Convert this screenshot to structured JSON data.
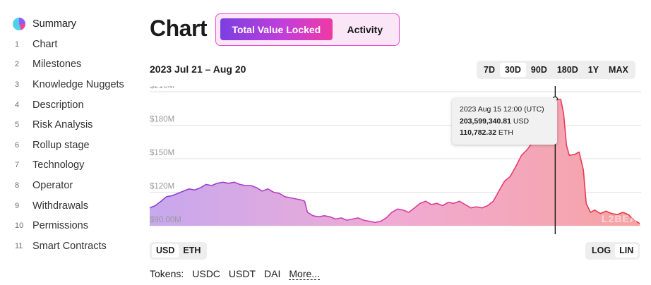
{
  "sidebar": {
    "items": [
      {
        "num": "",
        "label": "Summary"
      },
      {
        "num": "1",
        "label": "Chart"
      },
      {
        "num": "2",
        "label": "Milestones"
      },
      {
        "num": "3",
        "label": "Knowledge Nuggets"
      },
      {
        "num": "4",
        "label": "Description"
      },
      {
        "num": "5",
        "label": "Risk Analysis"
      },
      {
        "num": "6",
        "label": "Rollup stage"
      },
      {
        "num": "7",
        "label": "Technology"
      },
      {
        "num": "8",
        "label": "Operator"
      },
      {
        "num": "9",
        "label": "Withdrawals"
      },
      {
        "num": "10",
        "label": "Permissions"
      },
      {
        "num": "11",
        "label": "Smart Contracts"
      }
    ]
  },
  "header": {
    "title": "Chart",
    "tabs": [
      {
        "label": "Total Value Locked"
      },
      {
        "label": "Activity"
      }
    ],
    "date_range": "2023 Jul 21 – Aug 20"
  },
  "range_buttons": [
    "7D",
    "30D",
    "90D",
    "180D",
    "1Y",
    "MAX"
  ],
  "range_selected": "30D",
  "tooltip": {
    "date": "2023 Aug 15 12:00 (UTC)",
    "usd_value": "203,599,340.81",
    "usd_unit": "USD",
    "eth_value": "110,782.32",
    "eth_unit": "ETH"
  },
  "watermark": "L2BEAT",
  "currency_buttons": [
    "USD",
    "ETH"
  ],
  "currency_selected": "USD",
  "scale_buttons": [
    "LOG",
    "LIN"
  ],
  "scale_selected": "LIN",
  "tokens": {
    "label": "Tokens:",
    "items": [
      "USDC",
      "USDT",
      "DAI"
    ],
    "more": "More..."
  },
  "colors": {
    "accent_purple": "#7b3fe0",
    "accent_pink": "#ef3aa3",
    "line_red": "#e23b3b",
    "line_purple": "#8a3fd6"
  },
  "chart_data": {
    "type": "area",
    "y_tick_labels": [
      "$210M",
      "$180M",
      "$150M",
      "$120M",
      "$90.00M"
    ],
    "ylim": [
      90,
      210
    ],
    "x_range": [
      "2023-07-21",
      "2023-08-20"
    ],
    "series": [
      {
        "unit": "$M",
        "values": [
          [
            0,
            106
          ],
          [
            0.4,
            108
          ],
          [
            0.8,
            112
          ],
          [
            1.2,
            116
          ],
          [
            1.6,
            117
          ],
          [
            2.0,
            119
          ],
          [
            2.4,
            121
          ],
          [
            2.8,
            123
          ],
          [
            3.2,
            122
          ],
          [
            3.6,
            124
          ],
          [
            4.0,
            127
          ],
          [
            4.4,
            126
          ],
          [
            4.8,
            128
          ],
          [
            5.2,
            129
          ],
          [
            5.6,
            128
          ],
          [
            6.0,
            129
          ],
          [
            6.4,
            127
          ],
          [
            6.8,
            126
          ],
          [
            7.2,
            126
          ],
          [
            7.6,
            124
          ],
          [
            8.0,
            121
          ],
          [
            8.4,
            123
          ],
          [
            8.8,
            120
          ],
          [
            9.2,
            119
          ],
          [
            9.6,
            116
          ],
          [
            10.0,
            115
          ],
          [
            10.4,
            114
          ],
          [
            10.8,
            113
          ],
          [
            11.0,
            112
          ],
          [
            11.2,
            102
          ],
          [
            11.6,
            99
          ],
          [
            12.0,
            98
          ],
          [
            12.4,
            99
          ],
          [
            12.8,
            98
          ],
          [
            13.2,
            96
          ],
          [
            13.6,
            97
          ],
          [
            14.0,
            95
          ],
          [
            14.4,
            96
          ],
          [
            14.8,
            97
          ],
          [
            15.2,
            95
          ],
          [
            15.6,
            94
          ],
          [
            16.0,
            93
          ],
          [
            16.4,
            94
          ],
          [
            16.8,
            97
          ],
          [
            17.2,
            102
          ],
          [
            17.6,
            105
          ],
          [
            18.0,
            104
          ],
          [
            18.4,
            102
          ],
          [
            18.8,
            106
          ],
          [
            19.2,
            110
          ],
          [
            19.6,
            112
          ],
          [
            20.0,
            109
          ],
          [
            20.4,
            110
          ],
          [
            20.8,
            108
          ],
          [
            21.2,
            111
          ],
          [
            21.6,
            110
          ],
          [
            22.0,
            112
          ],
          [
            22.4,
            109
          ],
          [
            22.8,
            106
          ],
          [
            23.2,
            107
          ],
          [
            23.6,
            106
          ],
          [
            24.0,
            108
          ],
          [
            24.4,
            112
          ],
          [
            24.8,
            121
          ],
          [
            25.2,
            130
          ],
          [
            25.6,
            134
          ],
          [
            26.0,
            143
          ],
          [
            26.4,
            153
          ],
          [
            26.8,
            158
          ],
          [
            27.2,
            165
          ],
          [
            27.6,
            172
          ],
          [
            28.0,
            179
          ],
          [
            28.4,
            190
          ],
          [
            28.8,
            203.6
          ],
          [
            29.2,
            203
          ],
          [
            29.4,
            190
          ],
          [
            29.6,
            162
          ],
          [
            29.8,
            153
          ],
          [
            30.2,
            154
          ],
          [
            30.5,
            156
          ],
          [
            30.8,
            140
          ],
          [
            31.0,
            110
          ],
          [
            31.3,
            102
          ],
          [
            31.6,
            104
          ],
          [
            32.0,
            101
          ],
          [
            32.4,
            103
          ],
          [
            32.8,
            101
          ],
          [
            33.2,
            100
          ],
          [
            33.6,
            102
          ],
          [
            34.0,
            100
          ],
          [
            34.4,
            95
          ],
          [
            34.8,
            92
          ]
        ]
      }
    ],
    "highlight_index": 73,
    "grid": true
  }
}
